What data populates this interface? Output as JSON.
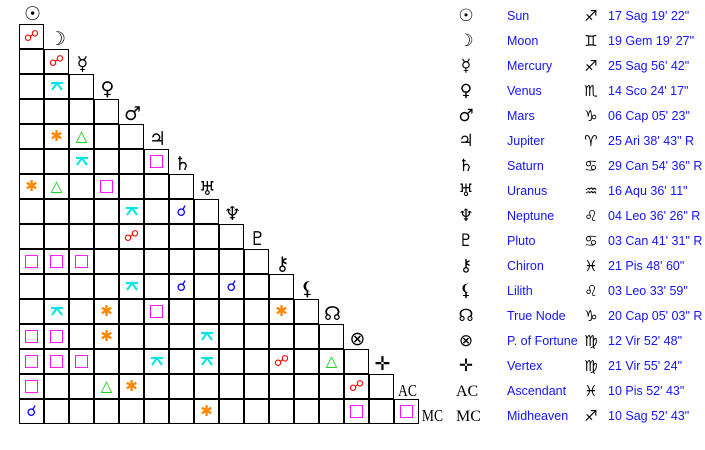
{
  "bodies": [
    {
      "name": "Sun",
      "glyph": "☉",
      "icon": "sun-icon",
      "sign_glyph": "♐",
      "sign_icon": "sagittarius-icon",
      "position": "17 Sag 19' 22\""
    },
    {
      "name": "Moon",
      "glyph": "☽",
      "icon": "moon-icon",
      "sign_glyph": "♊",
      "sign_icon": "gemini-icon",
      "position": "19 Gem 19' 27\""
    },
    {
      "name": "Mercury",
      "glyph": "☿",
      "icon": "mercury-icon",
      "sign_glyph": "♐",
      "sign_icon": "sagittarius-icon",
      "position": "25 Sag 56' 42\""
    },
    {
      "name": "Venus",
      "glyph": "♀",
      "icon": "venus-icon",
      "sign_glyph": "♏",
      "sign_icon": "scorpio-icon",
      "position": "14 Sco 24' 17\""
    },
    {
      "name": "Mars",
      "glyph": "♂",
      "icon": "mars-icon",
      "sign_glyph": "♑",
      "sign_icon": "capricorn-icon",
      "position": "06 Cap 05' 23\""
    },
    {
      "name": "Jupiter",
      "glyph": "♃",
      "icon": "jupiter-icon",
      "sign_glyph": "♈",
      "sign_icon": "aries-icon",
      "position": "25 Ari 38' 43\" R"
    },
    {
      "name": "Saturn",
      "glyph": "♄",
      "icon": "saturn-icon",
      "sign_glyph": "♋",
      "sign_icon": "cancer-icon",
      "position": "29 Can 54' 36\" R"
    },
    {
      "name": "Uranus",
      "glyph": "♅",
      "icon": "uranus-icon",
      "sign_glyph": "♒",
      "sign_icon": "aquarius-icon",
      "position": "16 Aqu 36' 11\""
    },
    {
      "name": "Neptune",
      "glyph": "♆",
      "icon": "neptune-icon",
      "sign_glyph": "♌",
      "sign_icon": "leo-icon",
      "position": "04 Leo 36' 26\" R"
    },
    {
      "name": "Pluto",
      "glyph": "♇",
      "icon": "pluto-icon",
      "sign_glyph": "♋",
      "sign_icon": "cancer-icon",
      "position": "03 Can 41' 31\" R"
    },
    {
      "name": "Chiron",
      "glyph": "⚷",
      "icon": "chiron-icon",
      "sign_glyph": "♓",
      "sign_icon": "pisces-icon",
      "position": "21 Pis 48' 60\""
    },
    {
      "name": "Lilith",
      "glyph": "⚸",
      "icon": "lilith-icon",
      "sign_glyph": "♌",
      "sign_icon": "leo-icon",
      "position": "03 Leo 33' 59\""
    },
    {
      "name": "True Node",
      "glyph": "☊",
      "icon": "true-node-icon",
      "sign_glyph": "♑",
      "sign_icon": "capricorn-icon",
      "position": "20 Cap 05' 03\" R"
    },
    {
      "name": "P. of Fortune",
      "glyph": "⊗",
      "icon": "part-of-fortune-icon",
      "sign_glyph": "♍",
      "sign_icon": "virgo-icon",
      "position": "12 Vir 52' 48\""
    },
    {
      "name": "Vertex",
      "glyph": "✛",
      "icon": "vertex-icon",
      "sign_glyph": "♍",
      "sign_icon": "virgo-icon",
      "position": "21 Vir 55' 24\""
    },
    {
      "name": "Ascendant",
      "glyph": "AC",
      "icon": "ascendant-label",
      "sign_glyph": "♓",
      "sign_icon": "pisces-icon",
      "position": "10 Pis 52' 43\""
    },
    {
      "name": "Midheaven",
      "glyph": "MC",
      "icon": "midheaven-label",
      "sign_glyph": "♐",
      "sign_icon": "sagittarius-icon",
      "position": "10 Sag 52' 43\""
    }
  ],
  "aspect_styles": {
    "opposition": {
      "glyph": "☍",
      "color": "#ff0000"
    },
    "conjunction": {
      "glyph": "☌",
      "color": "#0000ff"
    },
    "trine": {
      "glyph": "△",
      "color": "#00cc00"
    },
    "sextile": {
      "glyph": "✱",
      "color": "#ff8800"
    },
    "square": {
      "glyph": "□",
      "color": "#ff00ff"
    },
    "quincunx": {
      "glyph": "⚻",
      "color": "#00e5e5"
    }
  },
  "aspects": [
    [
      "Moon",
      "Sun",
      "opposition"
    ],
    [
      "Mercury",
      "Moon",
      "opposition"
    ],
    [
      "Venus",
      "Moon",
      "quincunx"
    ],
    [
      "Jupiter",
      "Moon",
      "sextile"
    ],
    [
      "Jupiter",
      "Mercury",
      "trine"
    ],
    [
      "Saturn",
      "Mercury",
      "quincunx"
    ],
    [
      "Saturn",
      "Jupiter",
      "square"
    ],
    [
      "Uranus",
      "Sun",
      "sextile"
    ],
    [
      "Uranus",
      "Moon",
      "trine"
    ],
    [
      "Uranus",
      "Venus",
      "square"
    ],
    [
      "Neptune",
      "Mars",
      "quincunx"
    ],
    [
      "Neptune",
      "Saturn",
      "conjunction"
    ],
    [
      "Pluto",
      "Mars",
      "opposition"
    ],
    [
      "Chiron",
      "Sun",
      "square"
    ],
    [
      "Chiron",
      "Moon",
      "square"
    ],
    [
      "Chiron",
      "Mercury",
      "square"
    ],
    [
      "Lilith",
      "Mars",
      "quincunx"
    ],
    [
      "Lilith",
      "Saturn",
      "conjunction"
    ],
    [
      "Lilith",
      "Neptune",
      "conjunction"
    ],
    [
      "True Node",
      "Moon",
      "quincunx"
    ],
    [
      "True Node",
      "Venus",
      "sextile"
    ],
    [
      "True Node",
      "Jupiter",
      "square"
    ],
    [
      "True Node",
      "Chiron",
      "sextile"
    ],
    [
      "P. of Fortune",
      "Sun",
      "square"
    ],
    [
      "P. of Fortune",
      "Moon",
      "square"
    ],
    [
      "P. of Fortune",
      "Venus",
      "sextile"
    ],
    [
      "P. of Fortune",
      "Uranus",
      "quincunx"
    ],
    [
      "Vertex",
      "Sun",
      "square"
    ],
    [
      "Vertex",
      "Moon",
      "square"
    ],
    [
      "Vertex",
      "Mercury",
      "square"
    ],
    [
      "Vertex",
      "Jupiter",
      "quincunx"
    ],
    [
      "Vertex",
      "Uranus",
      "quincunx"
    ],
    [
      "Vertex",
      "Chiron",
      "opposition"
    ],
    [
      "Vertex",
      "True Node",
      "trine"
    ],
    [
      "Ascendant",
      "Sun",
      "square"
    ],
    [
      "Ascendant",
      "Venus",
      "trine"
    ],
    [
      "Ascendant",
      "Mars",
      "sextile"
    ],
    [
      "Ascendant",
      "P. of Fortune",
      "opposition"
    ],
    [
      "Midheaven",
      "Sun",
      "conjunction"
    ],
    [
      "Midheaven",
      "Uranus",
      "sextile"
    ],
    [
      "Midheaven",
      "P. of Fortune",
      "square"
    ],
    [
      "Midheaven",
      "Ascendant",
      "square"
    ]
  ]
}
